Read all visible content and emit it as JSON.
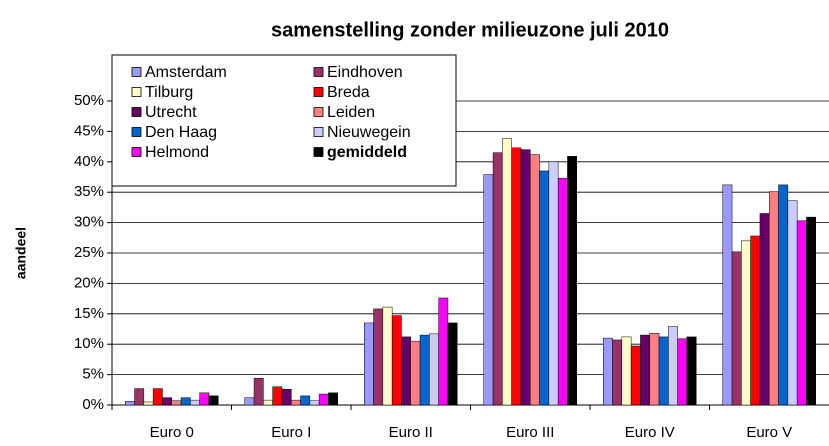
{
  "chart_data": {
    "type": "bar",
    "title": "samenstelling zonder milieuzone juli 2010",
    "y_label": "aandeel",
    "categories": [
      "Euro 0",
      "Euro I",
      "Euro II",
      "Euro III",
      "Euro IV",
      "Euro V"
    ],
    "series": [
      {
        "name": "Amsterdam",
        "color": "#9999ff",
        "values": [
          0.6,
          1.2,
          13.5,
          37.9,
          11.0,
          36.2
        ]
      },
      {
        "name": "Eindhoven",
        "color": "#993366",
        "values": [
          2.7,
          4.4,
          15.8,
          41.5,
          10.7,
          25.2
        ]
      },
      {
        "name": "Tilburg",
        "color": "#ffffcc",
        "values": [
          0.5,
          0.8,
          16.1,
          43.8,
          11.2,
          27.0
        ]
      },
      {
        "name": "Breda",
        "color": "#ff0000",
        "values": [
          2.7,
          3.0,
          14.7,
          42.3,
          9.7,
          27.8
        ]
      },
      {
        "name": "Utrecht",
        "color": "#660066",
        "values": [
          1.2,
          2.6,
          11.2,
          42.0,
          11.5,
          31.5
        ]
      },
      {
        "name": "Leiden",
        "color": "#ff8080",
        "values": [
          0.7,
          0.8,
          10.5,
          41.2,
          11.8,
          35.1
        ]
      },
      {
        "name": "Den Haag",
        "color": "#0066cc",
        "values": [
          1.2,
          1.5,
          11.5,
          38.5,
          11.2,
          36.2
        ]
      },
      {
        "name": "Nieuwegein",
        "color": "#ccccff",
        "values": [
          0.8,
          0.7,
          11.7,
          40.0,
          12.9,
          33.6
        ]
      },
      {
        "name": "Helmond",
        "color": "#ff00ff",
        "values": [
          2.0,
          1.8,
          17.6,
          37.3,
          10.9,
          30.3
        ]
      },
      {
        "name": "gemiddeld",
        "color": "#000000",
        "bold": true,
        "values": [
          1.5,
          2.0,
          13.5,
          40.9,
          11.2,
          30.9
        ]
      }
    ],
    "ylim": [
      0,
      50
    ],
    "yticks": [
      {
        "value": 0,
        "label": "0%"
      },
      {
        "value": 5,
        "label": "5%"
      },
      {
        "value": 10,
        "label": "10%"
      },
      {
        "value": 15,
        "label": "15%"
      },
      {
        "value": 20,
        "label": "20%"
      },
      {
        "value": 25,
        "label": "25%"
      },
      {
        "value": 30,
        "label": "30%"
      },
      {
        "value": 35,
        "label": "35%"
      },
      {
        "value": 40,
        "label": "40%"
      },
      {
        "value": 45,
        "label": "45%"
      },
      {
        "value": 50,
        "label": "50%"
      }
    ],
    "grid": true,
    "legend": "top-left"
  }
}
